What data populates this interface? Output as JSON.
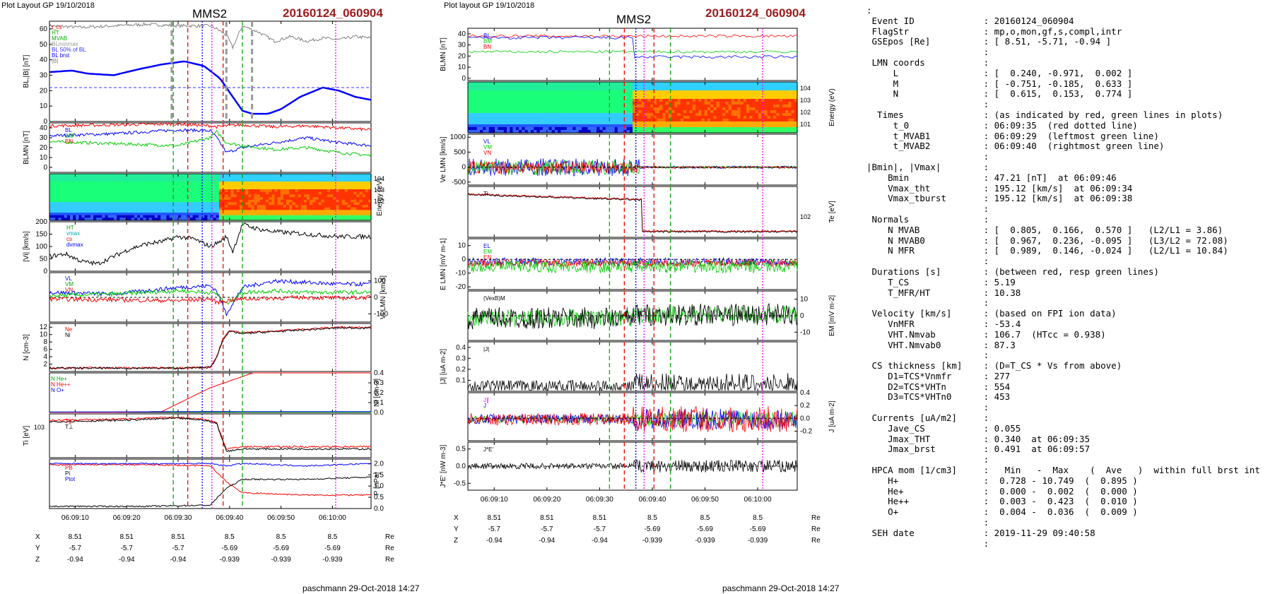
{
  "left_header": {
    "layout": "Plot Layout GP 19/10/2018",
    "spacecraft": "MMS2",
    "event": "20160124_060904"
  },
  "right_header": {
    "layout": "Plot layout GP 19/10/2018",
    "spacecraft": "MMS2",
    "event": "20160124_060904"
  },
  "footer": {
    "left": "paschmann 29-Oct-2018 14:27",
    "right": "paschmann 29-Oct-2018 14:27"
  },
  "colors": {
    "B_L": "#0000ff",
    "B_M": "#00cc00",
    "B_N": "#ff0000",
    "B_total": "#808080",
    "spectrogram_low": "#00ff99",
    "spectrogram_high": "#ff2000",
    "event_title": "#9b1c1c"
  },
  "chart_data": [
    {
      "type": "line",
      "panel": "left-1",
      "ylabel": "B_L, |B| [nT]",
      "ylim": [
        0,
        65
      ],
      "yticks": [
        "0",
        "10",
        "20",
        "30",
        "40",
        "50",
        "60"
      ],
      "legend": [
        "t_cs",
        "HT",
        "MVAB",
        "BLminmax",
        "BL 50% of BL",
        "BL brst",
        "|B|"
      ],
      "series": [
        {
          "name": "BL",
          "color": "#0000ff",
          "x": [
            0,
            0.07,
            0.12,
            0.2,
            0.28,
            0.35,
            0.42,
            0.48,
            0.53,
            0.57,
            0.6,
            0.63,
            0.68,
            0.72,
            0.78,
            0.85,
            0.9,
            0.95,
            1
          ],
          "y": [
            32,
            33,
            31,
            30,
            34,
            37,
            39,
            36,
            28,
            16,
            7,
            5,
            5,
            8,
            16,
            22,
            20,
            16,
            14
          ]
        },
        {
          "name": "|B|",
          "color": "#808080",
          "x": [
            0,
            0.1,
            0.2,
            0.3,
            0.4,
            0.5,
            0.52,
            0.55,
            0.57,
            0.6,
            0.65,
            0.7,
            0.75,
            0.8,
            0.85,
            0.9,
            0.95,
            1
          ],
          "y": [
            62,
            61,
            62,
            63,
            62,
            62,
            60,
            56,
            48,
            62,
            58,
            52,
            55,
            52,
            54,
            53,
            55,
            54
          ]
        }
      ],
      "hline": 22,
      "hline_label": "BL 50% of BL"
    },
    {
      "type": "line",
      "panel": "left-2",
      "ylabel": "B_LMN [nT]",
      "ylim": [
        -5,
        45
      ],
      "yticks": [
        "0",
        "10",
        "20",
        "30",
        "40"
      ],
      "legend": [
        "BL",
        "BM",
        "BN"
      ],
      "series": [
        {
          "name": "BL",
          "color": "#0000ff",
          "x": [
            0,
            0.2,
            0.4,
            0.5,
            0.52,
            0.55,
            0.6,
            0.7,
            0.8,
            0.9,
            1
          ],
          "y": [
            32,
            34,
            38,
            37,
            30,
            15,
            20,
            25,
            30,
            25,
            22
          ]
        },
        {
          "name": "BM",
          "color": "#00cc00",
          "x": [
            0,
            0.2,
            0.4,
            0.5,
            0.52,
            0.55,
            0.6,
            0.7,
            0.8,
            0.9,
            1
          ],
          "y": [
            26,
            24,
            22,
            30,
            36,
            25,
            22,
            18,
            20,
            15,
            12
          ]
        },
        {
          "name": "BN",
          "color": "#ff0000",
          "x": [
            0,
            0.2,
            0.4,
            0.5,
            0.52,
            0.55,
            0.6,
            0.7,
            0.8,
            0.9,
            1
          ],
          "y": [
            42,
            43,
            44,
            42,
            41,
            42,
            43,
            41,
            42,
            40,
            38
          ]
        }
      ]
    },
    {
      "type": "heatmap",
      "panel": "left-3",
      "ylabel": "Energy (eV)",
      "yticks": [
        "10^2",
        "10^3",
        "10^4"
      ],
      "transition_x": 0.52
    },
    {
      "type": "line",
      "panel": "left-4",
      "ylabel": "|Vi| [km/s]",
      "ylim": [
        0,
        200
      ],
      "yticks": [
        "0",
        "50",
        "100",
        "150",
        "200"
      ],
      "legend": [
        "HT",
        "vmax",
        "cs",
        "dvmax"
      ],
      "series": [
        {
          "name": "|Vi|",
          "color": "#000000",
          "x": [
            0,
            0.05,
            0.1,
            0.15,
            0.2,
            0.25,
            0.3,
            0.35,
            0.4,
            0.45,
            0.5,
            0.53,
            0.55,
            0.57,
            0.6,
            0.65,
            0.7,
            0.8,
            0.9,
            1
          ],
          "y": [
            60,
            70,
            40,
            30,
            60,
            90,
            110,
            120,
            140,
            130,
            100,
            120,
            140,
            80,
            190,
            170,
            160,
            150,
            140,
            140
          ]
        }
      ]
    },
    {
      "type": "line",
      "panel": "left-5",
      "ylabel": "Vi LMN [km/s]",
      "ylim": [
        -150,
        150
      ],
      "yticks": [
        "-100",
        "0",
        "100"
      ],
      "legend": [
        "VL",
        "VM",
        "VN"
      ],
      "series": [
        {
          "name": "VL",
          "color": "#0000ff",
          "x": [
            0,
            0.2,
            0.4,
            0.5,
            0.52,
            0.55,
            0.6,
            0.7,
            0.8,
            0.9,
            1
          ],
          "y": [
            30,
            20,
            60,
            70,
            40,
            -100,
            60,
            100,
            90,
            80,
            80
          ]
        },
        {
          "name": "VM",
          "color": "#00cc00",
          "x": [
            0,
            0.2,
            0.4,
            0.5,
            0.52,
            0.55,
            0.6,
            0.7,
            0.8,
            0.9,
            1
          ],
          "y": [
            10,
            20,
            40,
            30,
            20,
            -40,
            30,
            40,
            30,
            30,
            30
          ]
        },
        {
          "name": "VN",
          "color": "#ff0000",
          "x": [
            0,
            0.2,
            0.4,
            0.5,
            0.52,
            0.55,
            0.6,
            0.7,
            0.8,
            0.9,
            1
          ],
          "y": [
            -10,
            -15,
            -20,
            -10,
            -30,
            -20,
            -10,
            -5,
            0,
            -5,
            0
          ]
        }
      ]
    },
    {
      "type": "line",
      "panel": "left-6",
      "ylabel": "N [cm^-3]",
      "ylim": [
        0,
        13
      ],
      "yticks": [
        "2",
        "4",
        "6",
        "8",
        "10",
        "12"
      ],
      "legend": [
        "Ne",
        "Ni"
      ],
      "series": [
        {
          "name": "Ne",
          "color": "#ff0000",
          "x": [
            0,
            0.2,
            0.4,
            0.5,
            0.52,
            0.54,
            0.56,
            0.6,
            0.7,
            0.8,
            0.9,
            1
          ],
          "y": [
            1,
            1,
            1,
            1.2,
            4,
            9,
            11,
            10.5,
            11,
            11.5,
            12,
            12
          ]
        },
        {
          "name": "Ni",
          "color": "#000000",
          "x": [
            0,
            0.2,
            0.4,
            0.5,
            0.52,
            0.54,
            0.56,
            0.6,
            0.7,
            0.8,
            0.9,
            1
          ],
          "y": [
            0.9,
            0.9,
            0.9,
            1.1,
            3.8,
            8.8,
            10.8,
            10.3,
            10.8,
            11.3,
            11.8,
            11.8
          ]
        }
      ]
    },
    {
      "type": "line",
      "panel": "left-7",
      "ylabel": "Ni [cm^-3]",
      "ylim": [
        0,
        0.4
      ],
      "yticks": [
        "0.0",
        "0.1",
        "0.2",
        "0.3",
        "0.4"
      ],
      "legend": [
        "N He+",
        "N He++",
        "N O+"
      ],
      "series": [
        {
          "name": "N He+",
          "color": "#00cc00",
          "x": [
            0,
            0.3,
            0.5,
            0.6,
            0.75
          ],
          "y": [
            0.005,
            0.005,
            0.004,
            0.003,
            0.003
          ]
        },
        {
          "name": "N He++",
          "color": "#ff0000",
          "x": [
            0,
            0.2,
            0.35,
            0.5,
            0.65
          ],
          "y": [
            0,
            0,
            0.01,
            0.25,
            0.42
          ]
        },
        {
          "name": "N O+",
          "color": "#0000ff",
          "x": [
            0,
            0.2,
            0.35,
            0.5,
            0.65
          ],
          "y": [
            0.004,
            0.006,
            0.008,
            0.01,
            0.009
          ]
        }
      ]
    },
    {
      "type": "line",
      "panel": "left-8",
      "ylabel": "Ti [eV]",
      "ytick": "10^3",
      "legend": [
        "T_par",
        "T_perp"
      ],
      "series": [
        {
          "name": "Tpar",
          "color": "#ff0000",
          "x": [
            0,
            0.2,
            0.4,
            0.48,
            0.52,
            0.55,
            0.6,
            0.8,
            1
          ],
          "y": [
            0.85,
            0.88,
            0.92,
            0.88,
            0.8,
            0.2,
            0.25,
            0.25,
            0.25
          ]
        },
        {
          "name": "Tperp",
          "color": "#000000",
          "x": [
            0,
            0.2,
            0.4,
            0.48,
            0.52,
            0.55,
            0.6,
            0.8,
            1
          ],
          "y": [
            0.82,
            0.85,
            0.9,
            0.86,
            0.78,
            0.15,
            0.2,
            0.2,
            0.2
          ]
        }
      ]
    },
    {
      "type": "line",
      "panel": "left-9",
      "ylabel": "P [nPa]",
      "ylim": [
        0,
        2.2
      ],
      "yticks": [
        "0.0",
        "0.5",
        "1.0",
        "1.5",
        "2.0"
      ],
      "legend": [
        "PB",
        "Pi",
        "Ptot"
      ],
      "series": [
        {
          "name": "PB",
          "color": "#ff0000",
          "x": [
            0,
            0.3,
            0.5,
            0.55,
            0.6,
            0.8,
            1
          ],
          "y": [
            1.95,
            1.95,
            1.9,
            1.2,
            0.7,
            0.6,
            0.6
          ]
        },
        {
          "name": "Pi",
          "color": "#000000",
          "x": [
            0,
            0.3,
            0.5,
            0.55,
            0.6,
            0.8,
            1
          ],
          "y": [
            0.1,
            0.1,
            0.15,
            0.9,
            1.3,
            1.3,
            1.4
          ]
        },
        {
          "name": "Ptot",
          "color": "#0000ff",
          "x": [
            0,
            0.3,
            0.5,
            0.55,
            0.6,
            0.8,
            1
          ],
          "y": [
            2.0,
            2.0,
            2.0,
            1.9,
            2.0,
            1.9,
            2.0
          ]
        }
      ]
    },
    {
      "type": "line",
      "panel": "right-1",
      "ylabel": "BLMN [nT]",
      "ylim": [
        -2,
        45
      ],
      "yticks": [
        "0",
        "10",
        "20",
        "30",
        "40"
      ],
      "legend": [
        "BL",
        "BM",
        "BN"
      ]
    },
    {
      "type": "heatmap",
      "panel": "right-2",
      "ylabel": "Energy (eV)",
      "yticks": [
        "10^1",
        "10^2",
        "10^3",
        "10^4"
      ],
      "transition_x": 0.5
    },
    {
      "type": "line",
      "panel": "right-3",
      "ylabel": "Ve LMN [km/s]",
      "ylim": [
        -600,
        1100
      ],
      "yticks": [
        "-500",
        "0",
        "500",
        "1000"
      ],
      "legend": [
        "VL",
        "VM",
        "VN"
      ]
    },
    {
      "type": "line",
      "panel": "right-4",
      "ylabel": "Te [eV]",
      "ytick": "10^2",
      "legend": [
        "Ti"
      ]
    },
    {
      "type": "line",
      "panel": "right-5",
      "ylabel": "E LMN [mV m^-1]",
      "ylim": [
        -22,
        15
      ],
      "yticks": [
        "-20",
        "-10",
        "0",
        "10"
      ],
      "legend": [
        "EL",
        "EM",
        "EN"
      ]
    },
    {
      "type": "line",
      "panel": "right-6",
      "ylabel": "EM [mV m^-2]",
      "ylim": [
        -15,
        15
      ],
      "yticks": [
        "-10",
        "0",
        "10"
      ],
      "legend": [
        "(VexB)M"
      ]
    },
    {
      "type": "line",
      "panel": "right-7",
      "ylabel": "|J| [uA m^-2]",
      "ylim": [
        0,
        0.45
      ],
      "yticks": [
        "0.1",
        "0.2",
        "0.3",
        "0.4"
      ],
      "legend": [
        "|J|"
      ]
    },
    {
      "type": "line",
      "panel": "right-8",
      "ylabel": "J [uA m^-2]",
      "ylim": [
        -0.35,
        0.4
      ],
      "yticks": [
        "-0.2",
        "0.0",
        "0.2",
        "0.4"
      ],
      "legend": [
        "J_parallel",
        "J"
      ]
    },
    {
      "type": "line",
      "panel": "right-9",
      "ylabel": "J*E' [nW m^-3]",
      "ylim": [
        -0.7,
        0.7
      ],
      "yticks": [
        "-0.5",
        "0.0",
        "0.5"
      ],
      "legend": [
        "J*E'"
      ]
    }
  ],
  "time_axis": {
    "ticks": [
      "06:09:10",
      "06:09:20",
      "06:09:30",
      "06:09:40",
      "06:09:50",
      "06:10:00"
    ]
  },
  "position_table": {
    "rows": [
      {
        "label": "X",
        "values": [
          "8.51",
          "8.51",
          "8.51",
          "8.5",
          "8.5",
          "8.5"
        ],
        "unit": "Re"
      },
      {
        "label": "Y",
        "values": [
          "-5.7",
          "-5.7",
          "-5.7",
          "-5.69",
          "-5.69",
          "-5.69"
        ],
        "unit": "Re"
      },
      {
        "label": "Z",
        "values": [
          "-0.94",
          "-0.94",
          "-0.94",
          "-0.939",
          "-0.939",
          "-0.939"
        ],
        "unit": "Re"
      }
    ]
  },
  "panel_labels": {
    "left_legend1": [
      "t_cs",
      "HT",
      "MVAB",
      "BLminmax",
      "BL 50% of BL",
      "BL brst",
      "|B|"
    ],
    "left_B": [
      "BL",
      "BM",
      "BN"
    ],
    "left_V": [
      "HT",
      "vmax",
      "cs",
      "dvmax"
    ],
    "left_VLMN": [
      "VL",
      "VM",
      "VN"
    ],
    "left_N": [
      "Ne",
      "Ni"
    ],
    "left_Nmin": [
      "N He+",
      "N He++",
      "N O+"
    ],
    "left_T": [
      "T∥",
      "T⊥"
    ],
    "left_P": [
      "PB",
      "Pi",
      "Ptot"
    ],
    "right_B": [
      "BL",
      "BM",
      "BN"
    ],
    "right_V": [
      "VL",
      "VM",
      "VN"
    ],
    "right_T": [
      "Ti"
    ],
    "right_E": [
      "EL",
      "EM",
      "EN"
    ],
    "right_EM": [
      "(VexB)M"
    ],
    "right_J": [
      "|J|"
    ],
    "right_Jc": [
      "J∥",
      "J"
    ],
    "right_JE": [
      "J*E'"
    ]
  },
  "info_lines": [
    ":",
    " Event ID             : 20160124_060904",
    " FlagStr              : mp,o,mon,gf,s,compl,intr",
    " GSEpos [Re]          : [ 8.51, -5.71, -0.94 ]",
    "                      :",
    " LMN coords           :",
    "     L                : [  0.240, -0.971,  0.002 ]",
    "     M                : [ -0.751, -0.185,  0.633 ]",
    "     N                : [  0.615,  0.153,  0.774 ]",
    "                      :",
    "  Times               : (as indicated by red, green lines in plots)",
    "     t_0              : 06:09:35  (red dotted line)",
    "     t_MVAB1          : 06:09:29  (leftmost green line)",
    "     t_MVAB2          : 06:09:40  (rightmost green line)",
    "                      :",
    "|Bmin|, |Vmax|        :",
    "    Bmin              : 47.21 [nT]  at 06:09:46",
    "    Vmax_tht          : 195.12 [km/s]  at 06:09:34",
    "    Vmax_tburst       : 195.12 [km/s]  at 06:09:38",
    "                      :",
    " Normals              :",
    "    N MVAB            : [  0.805,  0.166,  0.570 ]   (L2/L1 = 3.86)",
    "    N MVAB0           : [  0.967,  0.236, -0.095 ]   (L3/L2 = 72.08)",
    "    N MFR             : [  0.989,  0.146, -0.024 ]   (L2/L1 = 10.84)",
    "                      :",
    " Durations [s]        : (between red, resp green lines)",
    "    T_CS              : 5.19",
    "    T_MFR/HT          : 10.38",
    "                      :",
    " Velocity [km/s]      : (based on FPI ion data)",
    "    VnMFR             : -53.4",
    "    VHT.Nmvab         : 106.7  (HTcc = 0.938)",
    "    VHT.Nmvab0        : 87.3",
    "                      :",
    " CS thickness [km]    : (D=T_CS * Vs from above)",
    "    D1=TCS*Vnmfr      : 277",
    "    D2=TCS*VHTn       : 554",
    "    D3=TCS*VHTn0      : 453",
    "                      :",
    " Currents [uA/m2]     :",
    "    Jave_CS           : 0.055",
    "    Jmax_THT          : 0.340  at 06:09:35",
    "    Jmax_brst         : 0.491  at 06:09:57",
    "                      :",
    " HPCA mom [1/cm3]     :   Min   -  Max    (  Ave   )  within full brst int",
    "    H+                :  0.728 - 10.749  (  0.895 )",
    "    He+               :  0.000 -  0.002  (  0.000 )",
    "    He++              :  0.003 -  0.423  (  0.010 )",
    "    O+                :  0.004 -  0.036  (  0.009 )",
    "                      :",
    " SEH date             : 2019-11-29 09:40:58",
    "                      :"
  ]
}
